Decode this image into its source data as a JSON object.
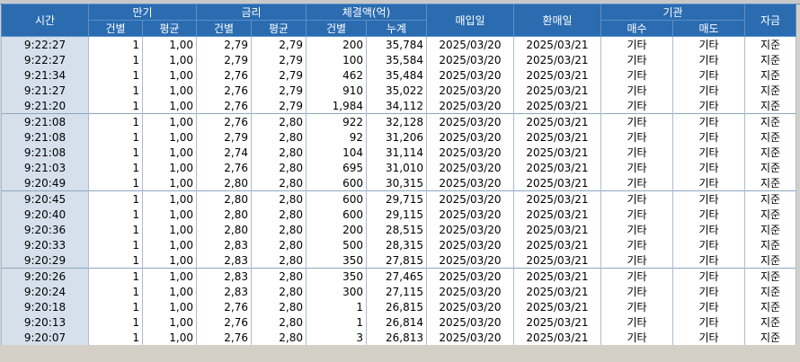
{
  "header": {
    "time": "시간",
    "maturity": "만기",
    "rate": "금리",
    "amount": "체결액(억)",
    "buy_date": "매입일",
    "resell_date": "환매일",
    "institution": "기관",
    "fund": "자금",
    "sub": {
      "count": "건별",
      "avg": "평균",
      "count2": "건별",
      "avg2": "평균",
      "count3": "건별",
      "cum": "누계",
      "buy": "매수",
      "sell": "매도"
    }
  },
  "rows": [
    [
      "9:22:27",
      "1",
      "1,00",
      "2,79",
      "2,79",
      "200",
      "35,784",
      "2025/03/20",
      "2025/03/21",
      "기타",
      "기타",
      "지준"
    ],
    [
      "9:22:27",
      "1",
      "1,00",
      "2,79",
      "2,79",
      "100",
      "35,584",
      "2025/03/20",
      "2025/03/21",
      "기타",
      "기타",
      "지준"
    ],
    [
      "9:21:34",
      "1",
      "1,00",
      "2,76",
      "2,79",
      "462",
      "35,484",
      "2025/03/20",
      "2025/03/21",
      "기타",
      "기타",
      "지준"
    ],
    [
      "9:21:27",
      "1",
      "1,00",
      "2,76",
      "2,79",
      "910",
      "35,022",
      "2025/03/20",
      "2025/03/21",
      "기타",
      "기타",
      "지준"
    ],
    [
      "9:21:20",
      "1",
      "1,00",
      "2,76",
      "2,79",
      "1,984",
      "34,112",
      "2025/03/20",
      "2025/03/21",
      "기타",
      "기타",
      "지준"
    ],
    [
      "9:21:08",
      "1",
      "1,00",
      "2,76",
      "2,80",
      "922",
      "32,128",
      "2025/03/20",
      "2025/03/21",
      "기타",
      "기타",
      "지준"
    ],
    [
      "9:21:08",
      "1",
      "1,00",
      "2,79",
      "2,80",
      "92",
      "31,206",
      "2025/03/20",
      "2025/03/21",
      "기타",
      "기타",
      "지준"
    ],
    [
      "9:21:08",
      "1",
      "1,00",
      "2,74",
      "2,80",
      "104",
      "31,114",
      "2025/03/20",
      "2025/03/21",
      "기타",
      "기타",
      "지준"
    ],
    [
      "9:21:03",
      "1",
      "1,00",
      "2,76",
      "2,80",
      "695",
      "31,010",
      "2025/03/20",
      "2025/03/21",
      "기타",
      "기타",
      "지준"
    ],
    [
      "9:20:49",
      "1",
      "1,00",
      "2,80",
      "2,80",
      "600",
      "30,315",
      "2025/03/20",
      "2025/03/21",
      "기타",
      "기타",
      "지준"
    ],
    [
      "9:20:45",
      "1",
      "1,00",
      "2,80",
      "2,80",
      "600",
      "29,715",
      "2025/03/20",
      "2025/03/21",
      "기타",
      "기타",
      "지준"
    ],
    [
      "9:20:40",
      "1",
      "1,00",
      "2,80",
      "2,80",
      "600",
      "29,115",
      "2025/03/20",
      "2025/03/21",
      "기타",
      "기타",
      "지준"
    ],
    [
      "9:20:36",
      "1",
      "1,00",
      "2,80",
      "2,80",
      "200",
      "28,515",
      "2025/03/20",
      "2025/03/21",
      "기타",
      "기타",
      "지준"
    ],
    [
      "9:20:33",
      "1",
      "1,00",
      "2,83",
      "2,80",
      "500",
      "28,315",
      "2025/03/20",
      "2025/03/21",
      "기타",
      "기타",
      "지준"
    ],
    [
      "9:20:29",
      "1",
      "1,00",
      "2,83",
      "2,80",
      "350",
      "27,815",
      "2025/03/20",
      "2025/03/21",
      "기타",
      "기타",
      "지준"
    ],
    [
      "9:20:26",
      "1",
      "1,00",
      "2,83",
      "2,80",
      "350",
      "27,465",
      "2025/03/20",
      "2025/03/21",
      "기타",
      "기타",
      "지준"
    ],
    [
      "9:20:24",
      "1",
      "1,00",
      "2,83",
      "2,80",
      "300",
      "27,115",
      "2025/03/20",
      "2025/03/21",
      "기타",
      "기타",
      "지준"
    ],
    [
      "9:20:18",
      "1",
      "1,00",
      "2,76",
      "2,80",
      "1",
      "26,815",
      "2025/03/20",
      "2025/03/21",
      "기타",
      "기타",
      "지준"
    ],
    [
      "9:20:13",
      "1",
      "1,00",
      "2,76",
      "2,80",
      "1",
      "26,814",
      "2025/03/20",
      "2025/03/21",
      "기타",
      "기타",
      "지준"
    ],
    [
      "9:20:07",
      "1",
      "1,00",
      "2,76",
      "2,80",
      "3",
      "26,813",
      "2025/03/20",
      "2025/03/21",
      "기타",
      "기타",
      "지준"
    ]
  ]
}
